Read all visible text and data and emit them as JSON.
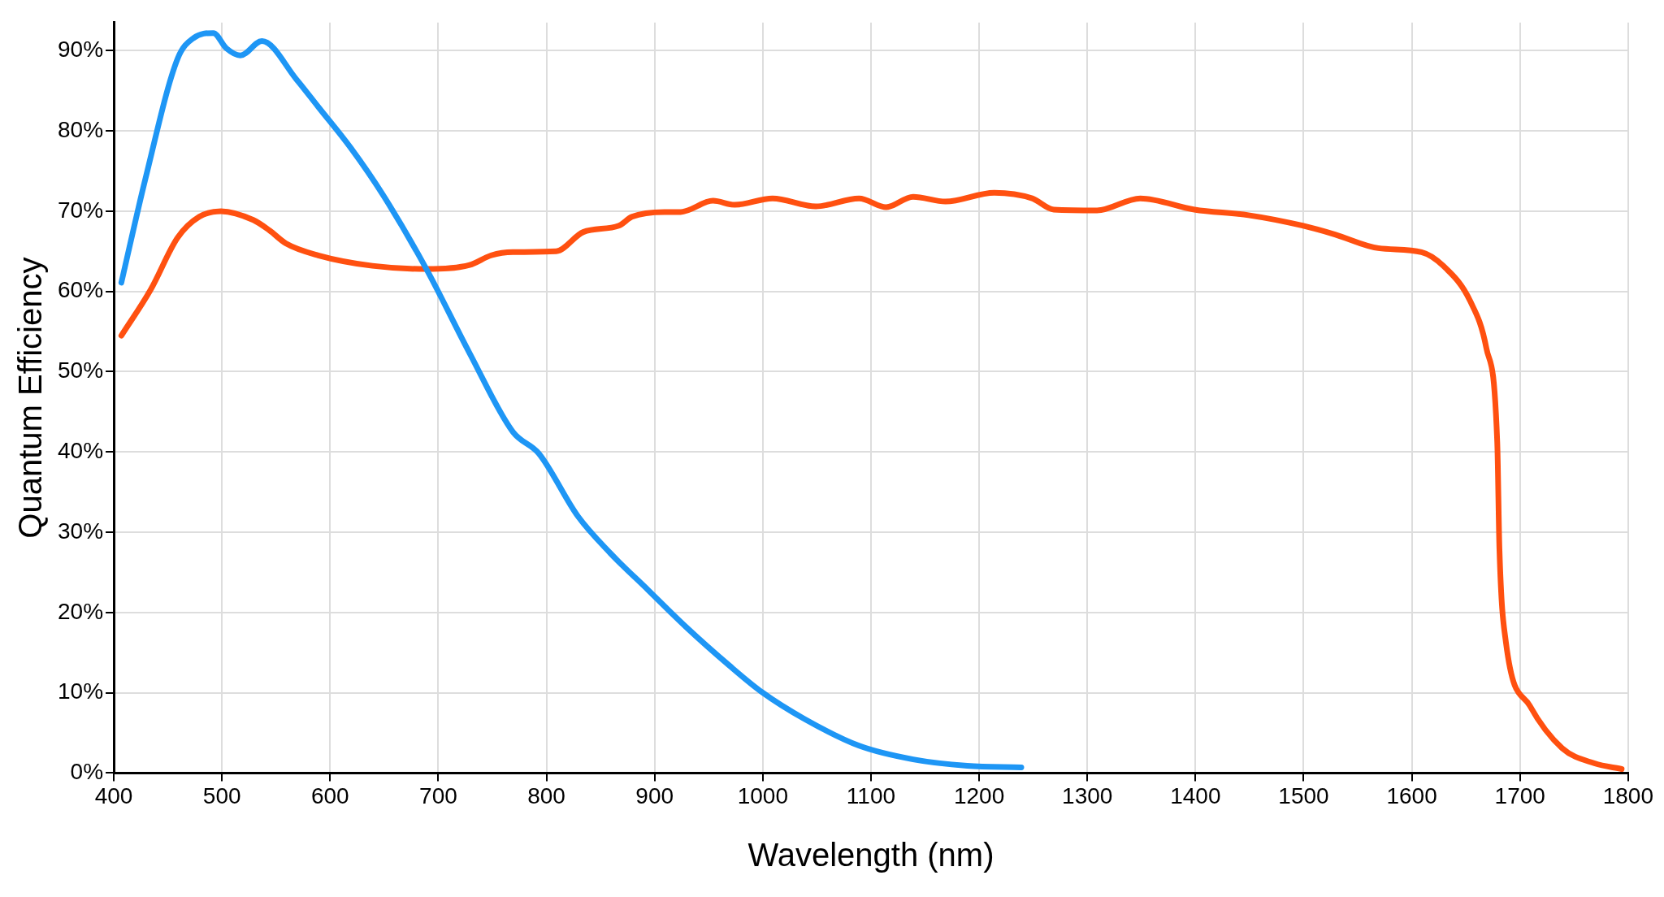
{
  "chart_data": {
    "type": "line",
    "xlabel": "Wavelength (nm)",
    "ylabel": "Quantum Efficiency",
    "xlim": [
      400,
      1800
    ],
    "xticks": [
      400,
      500,
      600,
      700,
      800,
      900,
      1000,
      1100,
      1200,
      1300,
      1400,
      1500,
      1600,
      1700,
      1800
    ],
    "ylim": [
      0,
      93.5
    ],
    "yticks": [
      {
        "value": 0,
        "label": "0%"
      },
      {
        "value": 10,
        "label": "10%"
      },
      {
        "value": 20,
        "label": "20%"
      },
      {
        "value": 30,
        "label": "30%"
      },
      {
        "value": 40,
        "label": "40%"
      },
      {
        "value": 50,
        "label": "50%"
      },
      {
        "value": 60,
        "label": "60%"
      },
      {
        "value": 70,
        "label": "70%"
      },
      {
        "value": 80,
        "label": "80%"
      },
      {
        "value": 90,
        "label": "90%"
      }
    ],
    "grid": true,
    "legend": false,
    "marker": "none",
    "line_style": "solid",
    "series": [
      {
        "color": "#1e96f5",
        "x": [
          407,
          429,
          459,
          474,
          492,
          504,
          517,
          537,
          569,
          589,
          619,
          649,
          689,
          729,
          769,
          793,
          829,
          859,
          894,
          929,
          969,
          999,
          1039,
          1089,
          1139,
          1189,
          1239
        ],
        "values": [
          61.1,
          73.9,
          89,
          91.6,
          92.2,
          90.3,
          89.4,
          91.2,
          86.4,
          83,
          77.9,
          72,
          62.8,
          52.3,
          42.5,
          39.8,
          32,
          27.4,
          22.8,
          18.2,
          13.4,
          10.1,
          6.7,
          3.4,
          1.7,
          0.9,
          0.7
        ]
      },
      {
        "color": "#ff5010",
        "x": [
          407,
          434,
          459,
          479,
          499,
          529,
          544,
          559,
          589,
          639,
          689,
          729,
          749,
          769,
          809,
          834,
          867,
          879,
          909,
          924,
          954,
          974,
          1009,
          1049,
          1089,
          1114,
          1139,
          1169,
          1214,
          1249,
          1269,
          1309,
          1349,
          1399,
          1449,
          1499,
          1529,
          1569,
          1609,
          1629,
          1654,
          1669,
          1679,
          1681,
          1687,
          1709,
          1739,
          1769,
          1794
        ],
        "values": [
          54.5,
          60.2,
          66.7,
          69.3,
          70,
          68.9,
          67.6,
          66,
          64.5,
          63.2,
          62.8,
          63.3,
          64.5,
          64.9,
          65,
          67.4,
          68.2,
          69.3,
          69.9,
          69.9,
          71.3,
          70.8,
          71.6,
          70.6,
          71.6,
          70.5,
          71.8,
          71.2,
          72.3,
          71.6,
          70.2,
          70.1,
          71.6,
          70.2,
          69.5,
          68.2,
          67.1,
          65.4,
          64.9,
          63.2,
          58.8,
          52.9,
          41.2,
          28,
          16.3,
          8.4,
          3.1,
          1.2,
          0.5
        ]
      }
    ]
  }
}
